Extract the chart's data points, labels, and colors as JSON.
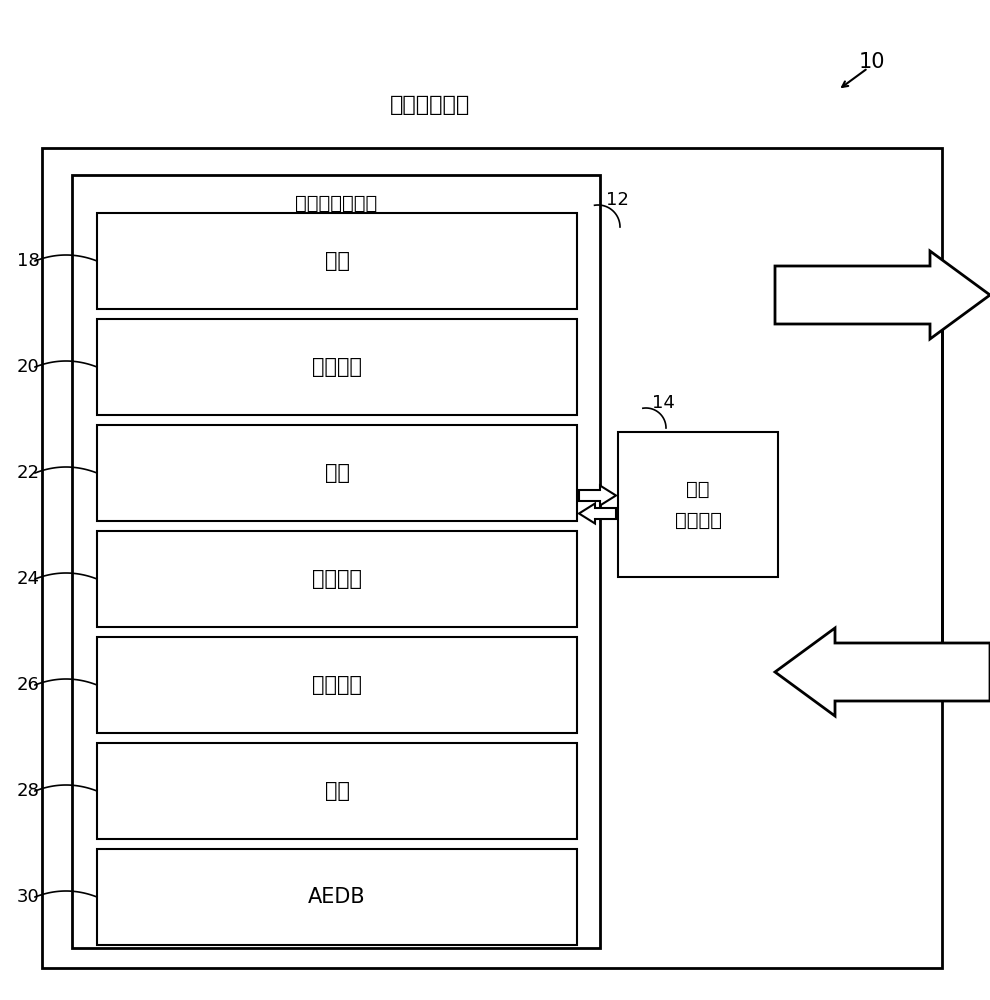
{
  "title": "飞行管理系统",
  "label_10": "10",
  "label_12": "12",
  "label_14": "14",
  "fmc_label": "飞行管理计算机",
  "cdu_label": "控制\n显示单元",
  "modules": [
    "导航",
    "推力管理",
    "导向",
    "飞行计划",
    "数据链路",
    "性能",
    "AEDB"
  ],
  "module_numbers": [
    "18",
    "20",
    "22",
    "24",
    "26",
    "28",
    "30"
  ],
  "bg_color": "#ffffff",
  "box_color": "#ffffff",
  "border_color": "#000000",
  "text_color": "#000000",
  "fontsize_title": 16,
  "fontsize_module": 15,
  "fontsize_fmc": 14,
  "fontsize_cdu": 14,
  "fontsize_number": 13
}
